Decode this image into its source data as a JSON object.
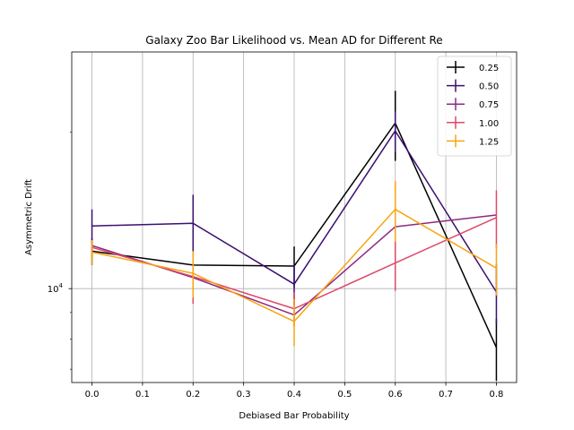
{
  "chart_data": {
    "type": "line",
    "title": "Galaxy Zoo Bar Likelihood vs. Mean AD for Different Re",
    "xlabel": "Debiased Bar Probability",
    "ylabel": "Asymmetric Drift",
    "x": [
      0.0,
      0.2,
      0.4,
      0.6,
      0.8
    ],
    "xlim": [
      -0.04,
      0.84
    ],
    "ylim": [
      6600,
      28500
    ],
    "yscale": "log",
    "grid_x": true,
    "grid_y_major": true,
    "legend_position": "top-right",
    "xticks": [
      0.0,
      0.1,
      0.2,
      0.3,
      0.4,
      0.5,
      0.6,
      0.7,
      0.8
    ],
    "xtick_labels": [
      "0.0",
      "0.1",
      "0.2",
      "0.3",
      "0.4",
      "0.5",
      "0.6",
      "0.7",
      "0.8"
    ],
    "ytick_major": [
      10000
    ],
    "ytick_major_label_base": "10",
    "ytick_major_label_exp": "4",
    "ytick_minor": [
      7000,
      8000,
      9000,
      20000
    ],
    "series": [
      {
        "name": "0.25",
        "color": "#000000",
        "values": [
          11800,
          11100,
          11050,
          20800,
          7700
        ],
        "errors": [
          700,
          0,
          1000,
          3200,
          1050
        ]
      },
      {
        "name": "0.50",
        "color": "#3b0f70",
        "values": [
          13200,
          13350,
          10200,
          20100,
          9850
        ],
        "errors": [
          1000,
          1800,
          900,
          1800,
          1300
        ]
      },
      {
        "name": "0.75",
        "color": "#8c2981",
        "values": [
          12100,
          10500,
          8900,
          13150,
          13850
        ],
        "errors": [
          0,
          0,
          0,
          0,
          0
        ]
      },
      {
        "name": "1.00",
        "color": "#de4968",
        "values": [
          12000,
          10550,
          9150,
          11200,
          13700
        ],
        "errors": [
          0,
          1200,
          700,
          1300,
          1750
        ]
      },
      {
        "name": "1.25",
        "color": "#f8a40f",
        "values": [
          11750,
          10700,
          8650,
          14200,
          10950
        ],
        "errors": [
          650,
          1100,
          900,
          1900,
          1250
        ]
      }
    ]
  }
}
